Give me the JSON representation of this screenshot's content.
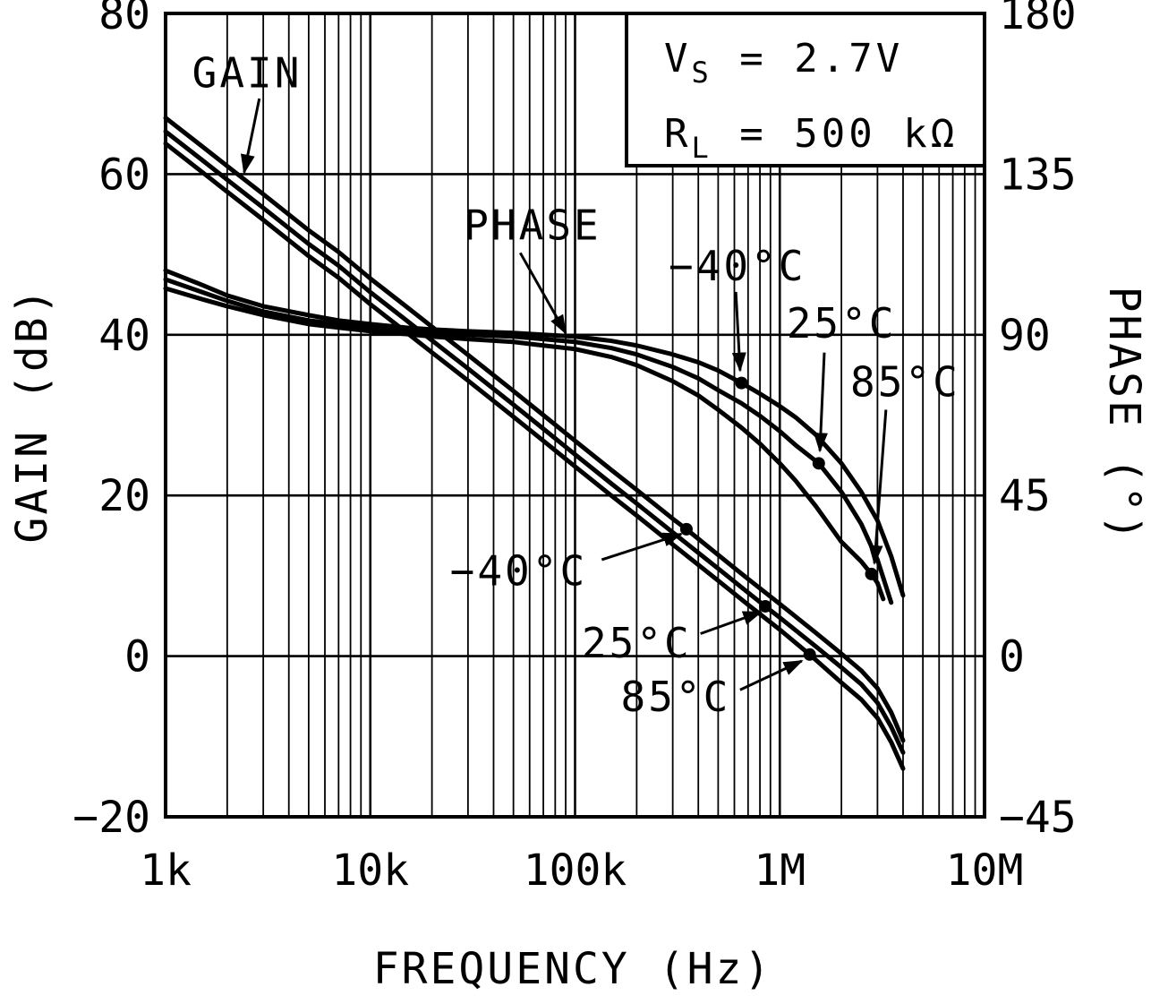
{
  "figure": {
    "conditions": [
      {
        "symbol": "V",
        "subscript": "S",
        "rhs": "= 2.7V"
      },
      {
        "symbol": "R",
        "subscript": "L",
        "rhs": "= 500 kΩ"
      }
    ]
  },
  "chart_data": {
    "type": "line",
    "title": "",
    "background": "#ffffff",
    "line_color": "#000000",
    "grid": {
      "vertical_minor": true,
      "horizontal_major": true,
      "legend": "none"
    },
    "x_axis": {
      "label": "FREQUENCY (Hz)",
      "scale": "log",
      "range": [
        1000,
        10000000
      ],
      "ticks": [
        {
          "value": 1000,
          "label": "1k"
        },
        {
          "value": 10000,
          "label": "10k"
        },
        {
          "value": 100000,
          "label": "100k"
        },
        {
          "value": 1000000,
          "label": "1M"
        },
        {
          "value": 10000000,
          "label": "10M"
        }
      ]
    },
    "y_left": {
      "label": "GAIN (dB)",
      "range": [
        -20,
        80
      ],
      "ticks": [
        {
          "value": 80,
          "label": "80"
        },
        {
          "value": 60,
          "label": "60"
        },
        {
          "value": 40,
          "label": "40"
        },
        {
          "value": 20,
          "label": "20"
        },
        {
          "value": 0,
          "label": "0"
        },
        {
          "value": -20,
          "label": "−20"
        }
      ]
    },
    "y_right": {
      "label": "PHASE (°)",
      "range": [
        -45,
        180
      ],
      "ticks": [
        {
          "value": 180,
          "label": "180"
        },
        {
          "value": 135,
          "label": "135"
        },
        {
          "value": 90,
          "label": "90"
        },
        {
          "value": 45,
          "label": "45"
        },
        {
          "value": 0,
          "label": "0"
        },
        {
          "value": -45,
          "label": "−45"
        }
      ]
    },
    "series": [
      {
        "id": "gain-m40",
        "name": "GAIN −40°C",
        "axis": "left",
        "points": [
          [
            1000,
            67
          ],
          [
            1500,
            63.5
          ],
          [
            2000,
            61
          ],
          [
            3000,
            57.5
          ],
          [
            5000,
            53
          ],
          [
            7000,
            50.3
          ],
          [
            10000,
            47
          ],
          [
            15000,
            43.5
          ],
          [
            20000,
            41
          ],
          [
            30000,
            37.5
          ],
          [
            50000,
            33
          ],
          [
            70000,
            30
          ],
          [
            100000,
            26.8
          ],
          [
            150000,
            23.2
          ],
          [
            200000,
            20.7
          ],
          [
            300000,
            17.1
          ],
          [
            350000,
            15.8
          ],
          [
            500000,
            12.6
          ],
          [
            700000,
            9.6
          ],
          [
            1000000,
            6.5
          ],
          [
            1500000,
            2.9
          ],
          [
            2000000,
            0.3
          ],
          [
            2500000,
            -1.8
          ],
          [
            3000000,
            -4
          ],
          [
            3500000,
            -7
          ],
          [
            4000000,
            -10.5
          ]
        ]
      },
      {
        "id": "gain-25",
        "name": "GAIN 25°C",
        "axis": "left",
        "points": [
          [
            1000,
            65.3
          ],
          [
            1500,
            61.8
          ],
          [
            2000,
            59.3
          ],
          [
            3000,
            55.8
          ],
          [
            5000,
            51.3
          ],
          [
            7000,
            48.6
          ],
          [
            10000,
            45.3
          ],
          [
            15000,
            41.8
          ],
          [
            20000,
            39.3
          ],
          [
            30000,
            35.8
          ],
          [
            50000,
            31.3
          ],
          [
            70000,
            28.3
          ],
          [
            100000,
            25.1
          ],
          [
            150000,
            21.5
          ],
          [
            200000,
            19
          ],
          [
            300000,
            15.4
          ],
          [
            500000,
            10.9
          ],
          [
            700000,
            7.9
          ],
          [
            850000,
            6.2
          ],
          [
            1000000,
            4.8
          ],
          [
            1500000,
            1.2
          ],
          [
            2000000,
            -1.4
          ],
          [
            2500000,
            -3.5
          ],
          [
            3000000,
            -5.8
          ],
          [
            3500000,
            -8.8
          ],
          [
            4000000,
            -12
          ]
        ]
      },
      {
        "id": "gain-85",
        "name": "GAIN 85°C",
        "axis": "left",
        "points": [
          [
            1000,
            63.8
          ],
          [
            1500,
            60.3
          ],
          [
            2000,
            57.8
          ],
          [
            3000,
            54.3
          ],
          [
            5000,
            49.8
          ],
          [
            7000,
            47.1
          ],
          [
            10000,
            43.8
          ],
          [
            15000,
            40.3
          ],
          [
            20000,
            37.8
          ],
          [
            30000,
            34.3
          ],
          [
            50000,
            29.8
          ],
          [
            70000,
            26.8
          ],
          [
            100000,
            23.6
          ],
          [
            150000,
            20
          ],
          [
            200000,
            17.5
          ],
          [
            300000,
            13.9
          ],
          [
            500000,
            9.4
          ],
          [
            700000,
            6.4
          ],
          [
            1000000,
            3.3
          ],
          [
            1400000,
            0.2
          ],
          [
            2000000,
            -3.3
          ],
          [
            2500000,
            -5.4
          ],
          [
            3000000,
            -7.7
          ],
          [
            3500000,
            -10.7
          ],
          [
            4000000,
            -14
          ]
        ]
      },
      {
        "id": "phase-m40",
        "name": "PHASE −40°C",
        "axis": "right",
        "points": [
          [
            1000,
            108
          ],
          [
            1500,
            104
          ],
          [
            2000,
            101
          ],
          [
            3000,
            98
          ],
          [
            5000,
            95.5
          ],
          [
            7000,
            94
          ],
          [
            10000,
            93
          ],
          [
            15000,
            92
          ],
          [
            20000,
            91.5
          ],
          [
            30000,
            91
          ],
          [
            50000,
            90.5
          ],
          [
            70000,
            90
          ],
          [
            100000,
            89.5
          ],
          [
            150000,
            88.3
          ],
          [
            200000,
            87
          ],
          [
            300000,
            84.5
          ],
          [
            400000,
            82.3
          ],
          [
            500000,
            80
          ],
          [
            650000,
            76.5
          ],
          [
            800000,
            73.5
          ],
          [
            1000000,
            70
          ],
          [
            1200000,
            66.8
          ],
          [
            1500000,
            62
          ],
          [
            2000000,
            54
          ],
          [
            2500000,
            46
          ],
          [
            3000000,
            38
          ],
          [
            3500000,
            28
          ],
          [
            4000000,
            17
          ]
        ]
      },
      {
        "id": "phase-25",
        "name": "PHASE 25°C",
        "axis": "right",
        "points": [
          [
            1000,
            105.5
          ],
          [
            1500,
            102
          ],
          [
            2000,
            99.5
          ],
          [
            3000,
            96.5
          ],
          [
            5000,
            94
          ],
          [
            7000,
            93
          ],
          [
            10000,
            92
          ],
          [
            15000,
            91.2
          ],
          [
            20000,
            90.5
          ],
          [
            30000,
            90
          ],
          [
            50000,
            89.5
          ],
          [
            70000,
            88.8
          ],
          [
            100000,
            88
          ],
          [
            150000,
            86.3
          ],
          [
            200000,
            84.5
          ],
          [
            300000,
            81
          ],
          [
            400000,
            77.8
          ],
          [
            500000,
            74.5
          ],
          [
            650000,
            70.8
          ],
          [
            800000,
            67.3
          ],
          [
            1000000,
            63
          ],
          [
            1200000,
            59
          ],
          [
            1550000,
            54
          ],
          [
            2000000,
            46
          ],
          [
            2500000,
            37
          ],
          [
            3000000,
            27
          ],
          [
            3500000,
            15
          ]
        ]
      },
      {
        "id": "phase-85",
        "name": "PHASE 85°C",
        "axis": "right",
        "points": [
          [
            1000,
            103
          ],
          [
            1500,
            100
          ],
          [
            2000,
            98
          ],
          [
            3000,
            95.5
          ],
          [
            5000,
            93
          ],
          [
            7000,
            92
          ],
          [
            10000,
            91
          ],
          [
            15000,
            90.2
          ],
          [
            20000,
            89.5
          ],
          [
            30000,
            88.8
          ],
          [
            50000,
            88
          ],
          [
            70000,
            87
          ],
          [
            100000,
            86
          ],
          [
            150000,
            83.8
          ],
          [
            200000,
            81.5
          ],
          [
            300000,
            77
          ],
          [
            400000,
            73
          ],
          [
            500000,
            69
          ],
          [
            650000,
            64
          ],
          [
            800000,
            59.5
          ],
          [
            1000000,
            54
          ],
          [
            1200000,
            49
          ],
          [
            1500000,
            42
          ],
          [
            2000000,
            32
          ],
          [
            2500000,
            26.5
          ],
          [
            2800000,
            23
          ],
          [
            3000000,
            20.5
          ],
          [
            3200000,
            16
          ]
        ]
      }
    ],
    "markers": [
      {
        "series": "phase-m40",
        "freq": 650000
      },
      {
        "series": "phase-25",
        "freq": 1550000
      },
      {
        "series": "phase-85",
        "freq": 2800000
      },
      {
        "series": "gain-m40",
        "freq": 350000
      },
      {
        "series": "gain-25",
        "freq": 850000
      },
      {
        "series": "gain-85",
        "freq": 1400000
      }
    ],
    "annotations": [
      {
        "id": "gain",
        "text": "GAIN",
        "axis": "left",
        "label": {
          "freq": 2500,
          "value": 72.5
        },
        "arrow": {
          "from": {
            "freq": 2870,
            "value": 69.4
          },
          "to": {
            "freq": 2420,
            "value": 60.2
          }
        }
      },
      {
        "id": "phase",
        "text": "PHASE",
        "axis": "left",
        "label": {
          "freq": 62000,
          "value": 53.5
        },
        "arrow": {
          "from": {
            "freq": 54000,
            "value": 50.2
          },
          "to": {
            "freq": 90000,
            "value": 40.2
          }
        }
      },
      {
        "id": "phase-m40",
        "text": "−40°C",
        "axis": "right",
        "label": {
          "freq": 620000,
          "value": 109
        },
        "arrow": {
          "from": {
            "freq": 610000,
            "value": 102
          },
          "to": {
            "freq": 640000,
            "value": 80
          }
        }
      },
      {
        "id": "phase-25",
        "text": "25°C",
        "axis": "right",
        "label": {
          "freq": 2000000,
          "value": 93
        },
        "arrow": {
          "from": {
            "freq": 1650000,
            "value": 85
          },
          "to": {
            "freq": 1570000,
            "value": 57.5
          }
        }
      },
      {
        "id": "phase-85",
        "text": "85°C",
        "axis": "right",
        "label": {
          "freq": 4100000,
          "value": 76.5
        },
        "arrow": {
          "from": {
            "freq": 3300000,
            "value": 69
          },
          "to": {
            "freq": 2900000,
            "value": 26
          }
        }
      },
      {
        "id": "gain-m40",
        "text": "−40°C",
        "axis": "left",
        "label": {
          "freq": 53000,
          "value": 10.5
        },
        "arrow": {
          "from": {
            "freq": 135000,
            "value": 12
          },
          "to": {
            "freq": 330000,
            "value": 15.2
          }
        }
      },
      {
        "id": "gain-25",
        "text": "25°C",
        "axis": "left",
        "label": {
          "freq": 200000,
          "value": 1.5
        },
        "arrow": {
          "from": {
            "freq": 410000,
            "value": 2.8
          },
          "to": {
            "freq": 810000,
            "value": 5.5
          }
        }
      },
      {
        "id": "gain-85",
        "text": "85°C",
        "axis": "left",
        "label": {
          "freq": 310000,
          "value": -5.2
        },
        "arrow": {
          "from": {
            "freq": 640000,
            "value": -4.2
          },
          "to": {
            "freq": 1280000,
            "value": -0.6
          }
        }
      }
    ]
  }
}
